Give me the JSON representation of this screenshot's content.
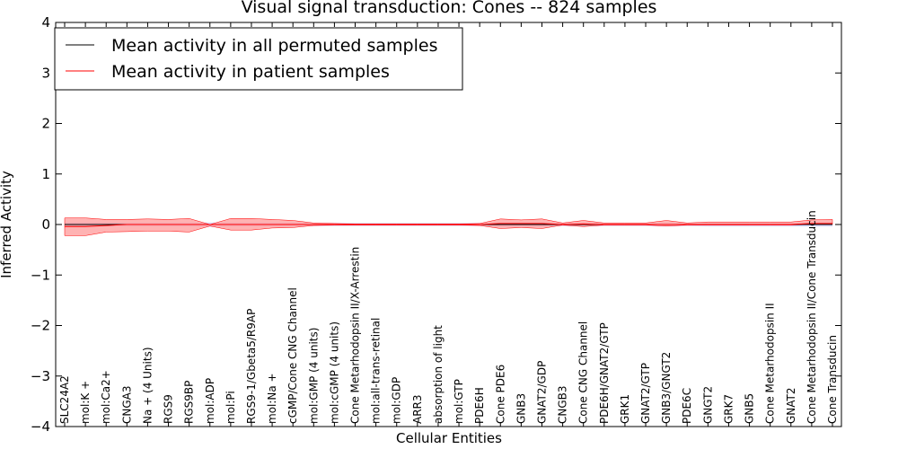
{
  "chart_data": {
    "type": "line",
    "title": "Visual signal transduction: Cones -- 824 samples",
    "xlabel": "Cellular Entities",
    "ylabel": "Inferred Activity",
    "ylim": [
      -4,
      4
    ],
    "yticks": [
      "−4",
      "−3",
      "−2",
      "−1",
      "0",
      "1",
      "2",
      "3",
      "4"
    ],
    "legend_placement": "top-left",
    "grid": false,
    "categories": [
      "SLC24A2",
      "mol:K +",
      "mol:Ca2+",
      "CNGA3",
      "Na + (4 Units)",
      "RGS9",
      "RGS9BP",
      "mol:ADP",
      "mol:Pi",
      "RGS9-1/Gbeta5/R9AP",
      "mol:Na +",
      "cGMP/Cone CNG Channel",
      "mol:GMP (4 units)",
      "mol:cGMP (4 units)",
      "Cone Metarhodopsin II/X-Arrestin",
      "mol:all-trans-retinal",
      "mol:GDP",
      "ARR3",
      "absorption of light",
      "mol:GTP",
      "PDE6H",
      "Cone PDE6",
      "GNB3",
      "GNAT2/GDP",
      "CNGB3",
      "Cone CNG Channel",
      "PDE6H/GNAT2/GTP",
      "GRK1",
      "GNAT2/GTP",
      "GNB3/GNGT2",
      "PDE6C",
      "GNGT2",
      "GRK7",
      "GNB5",
      "Cone Metarhodopsin II",
      "GNAT2",
      "Cone Metarhodopsin II/Cone Transducin",
      "Cone Transducin"
    ],
    "series": [
      {
        "name": "Mean activity in all permuted samples",
        "color": "#000000",
        "values": [
          0,
          0,
          0,
          0,
          0,
          0,
          0,
          0,
          0,
          0,
          0,
          0,
          0,
          0,
          0,
          0,
          0,
          0,
          0,
          0,
          0,
          0,
          0,
          0,
          0,
          0,
          0,
          0,
          0,
          0,
          0,
          0,
          0,
          0,
          0,
          0,
          0,
          0
        ]
      },
      {
        "name": "Mean activity in patient samples",
        "color": "#ff0000",
        "band_color": "#ff9999",
        "values": [
          -0.04,
          -0.04,
          -0.02,
          0.0,
          0.0,
          0.0,
          0.0,
          0.0,
          0.0,
          0.0,
          0.0,
          0.0,
          0.0,
          0.0,
          0.0,
          0.0,
          0.0,
          0.0,
          0.0,
          0.0,
          0.0,
          0.02,
          0.02,
          0.02,
          0.0,
          0.01,
          0.0,
          0.0,
          0.0,
          0.0,
          0.0,
          0.0,
          0.0,
          0.0,
          0.0,
          0.0,
          0.02,
          0.02
        ],
        "upper": [
          0.13,
          0.13,
          0.1,
          0.1,
          0.11,
          0.1,
          0.12,
          0.0,
          0.12,
          0.12,
          0.1,
          0.08,
          0.03,
          0.02,
          0.01,
          0.01,
          0.01,
          0.01,
          0.01,
          0.01,
          0.02,
          0.11,
          0.09,
          0.11,
          0.03,
          0.08,
          0.03,
          0.03,
          0.03,
          0.08,
          0.03,
          0.05,
          0.05,
          0.05,
          0.05,
          0.05,
          0.09,
          0.1
        ],
        "lower": [
          -0.22,
          -0.22,
          -0.15,
          -0.14,
          -0.13,
          -0.13,
          -0.15,
          -0.03,
          -0.11,
          -0.11,
          -0.07,
          -0.06,
          -0.02,
          -0.01,
          -0.01,
          -0.01,
          -0.01,
          -0.01,
          -0.01,
          -0.01,
          -0.02,
          -0.08,
          -0.06,
          -0.08,
          -0.01,
          -0.04,
          -0.01,
          -0.01,
          -0.01,
          -0.03,
          -0.01,
          -0.01,
          -0.01,
          -0.01,
          -0.01,
          -0.01,
          0.0,
          0.0
        ]
      }
    ],
    "permuted_band": {
      "color": "#ccccff",
      "upper": [
        0.04,
        0.04,
        0.04,
        0.04,
        0.04,
        0.04,
        0.04,
        0.04,
        0.04,
        0.04,
        0.04,
        0.04,
        0.03,
        0.03,
        0.03,
        0.03,
        0.03,
        0.03,
        0.03,
        0.03,
        0.03,
        0.03,
        0.03,
        0.03,
        0.03,
        0.03,
        0.03,
        0.03,
        0.03,
        0.03,
        0.03,
        0.03,
        0.03,
        0.03,
        0.03,
        0.03,
        0.03,
        0.03
      ],
      "lower": [
        -0.04,
        -0.04,
        -0.04,
        -0.04,
        -0.04,
        -0.04,
        -0.04,
        -0.05,
        -0.04,
        -0.04,
        -0.04,
        -0.04,
        -0.03,
        -0.03,
        -0.03,
        -0.03,
        -0.03,
        -0.03,
        -0.03,
        -0.03,
        -0.03,
        -0.04,
        -0.04,
        -0.04,
        -0.03,
        -0.04,
        -0.03,
        -0.03,
        -0.03,
        -0.04,
        -0.03,
        -0.04,
        -0.04,
        -0.04,
        -0.04,
        -0.04,
        -0.04,
        -0.04
      ]
    }
  }
}
